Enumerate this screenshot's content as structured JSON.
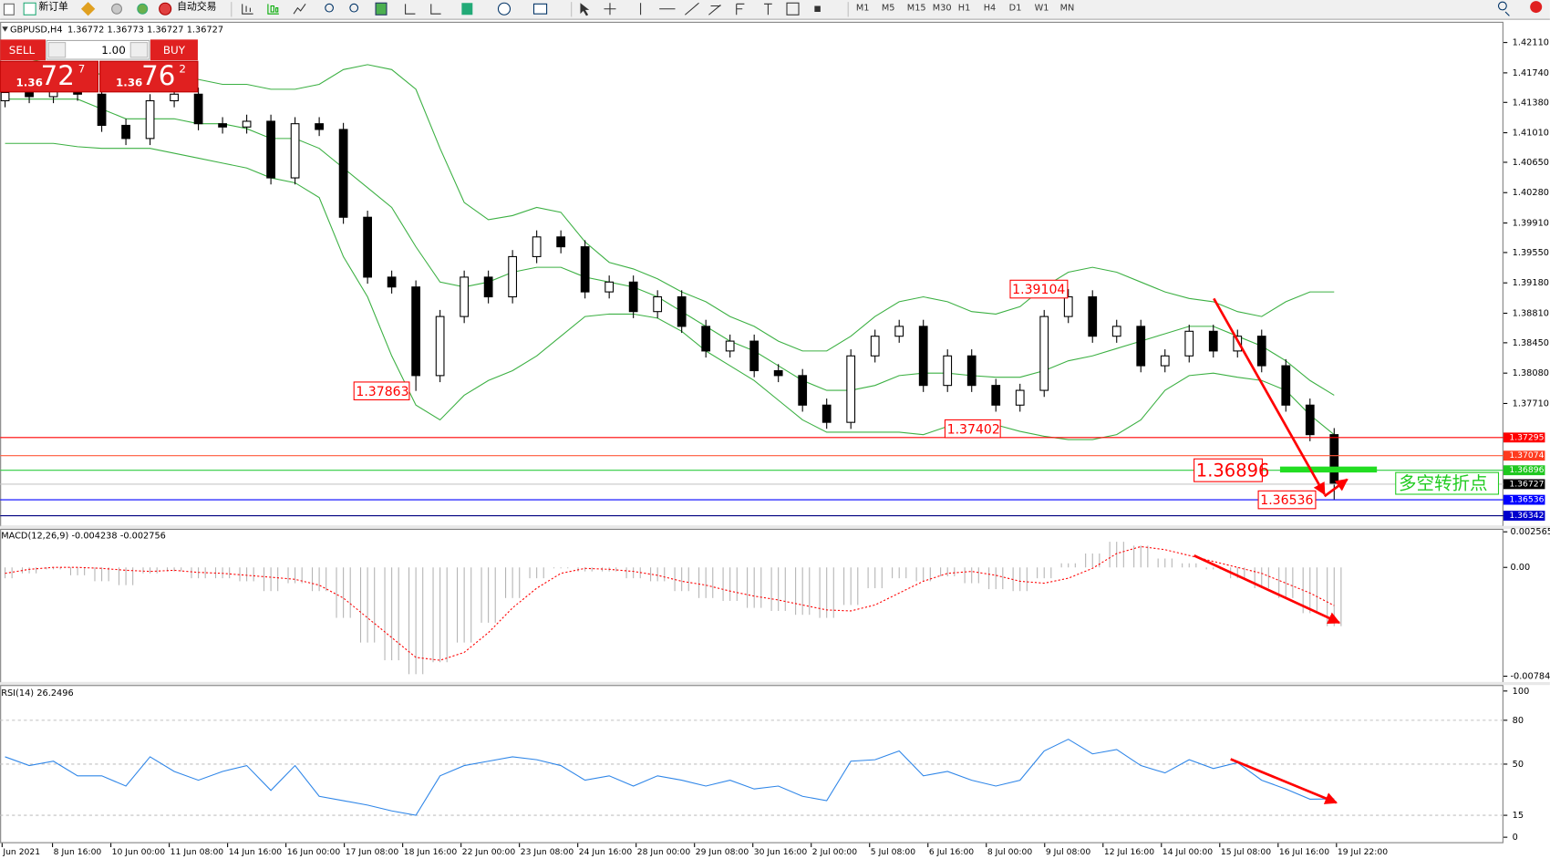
{
  "toolbar": {
    "new_order": "新订单",
    "auto_trading": "自动交易",
    "timeframes": [
      "M1",
      "M5",
      "M15",
      "M30",
      "H1",
      "H4",
      "D1",
      "W1",
      "MN"
    ]
  },
  "trade_panel": {
    "sell": "SELL",
    "buy": "BUY",
    "lot": "1.00",
    "sell_price": {
      "big": "1.36",
      "pips": "72",
      "point": "7"
    },
    "buy_price": {
      "big": "1.36",
      "pips": "76",
      "point": "2"
    }
  },
  "chart": {
    "type": "candlestick",
    "symbol": "GBPUSD,H4",
    "quote": [
      1.36772,
      1.36773,
      1.36727,
      1.36727
    ],
    "ylim": [
      1.36218,
      1.42363
    ],
    "yticks": [
      {
        "value": 1.4211,
        "label": "1.42110"
      },
      {
        "value": 1.4174,
        "label": "1.41740"
      },
      {
        "value": 1.4138,
        "label": "1.41380"
      },
      {
        "value": 1.4101,
        "label": "1.41010"
      },
      {
        "value": 1.4065,
        "label": "1.40650"
      },
      {
        "value": 1.4028,
        "label": "1.40280"
      },
      {
        "value": 1.3991,
        "label": "1.39910"
      },
      {
        "value": 1.3955,
        "label": "1.39550"
      },
      {
        "value": 1.3918,
        "label": "1.39180"
      },
      {
        "value": 1.3881,
        "label": "1.38810"
      },
      {
        "value": 1.3845,
        "label": "1.38450"
      },
      {
        "value": 1.3808,
        "label": "1.38080"
      },
      {
        "value": 1.3771,
        "label": "1.37710"
      }
    ],
    "candles": [
      [
        1.414,
        1.4158,
        1.4132,
        1.415
      ],
      [
        1.415,
        1.4158,
        1.4137,
        1.4145
      ],
      [
        1.4145,
        1.416,
        1.4137,
        1.4152
      ],
      [
        1.4152,
        1.416,
        1.414,
        1.4148
      ],
      [
        1.4148,
        1.4156,
        1.4102,
        1.411
      ],
      [
        1.411,
        1.4118,
        1.4086,
        1.4094
      ],
      [
        1.4094,
        1.4148,
        1.4086,
        1.414
      ],
      [
        1.414,
        1.4156,
        1.4132,
        1.4148
      ],
      [
        1.4148,
        1.4156,
        1.4104,
        1.4112
      ],
      [
        1.4112,
        1.412,
        1.41,
        1.4108
      ],
      [
        1.4108,
        1.4123,
        1.41,
        1.4115
      ],
      [
        1.4115,
        1.4123,
        1.4038,
        1.4046
      ],
      [
        1.4046,
        1.412,
        1.4038,
        1.4112
      ],
      [
        1.4112,
        1.412,
        1.4097,
        1.4105
      ],
      [
        1.4105,
        1.4113,
        1.399,
        1.3998
      ],
      [
        1.3998,
        1.4006,
        1.3917,
        1.3925
      ],
      [
        1.3925,
        1.3933,
        1.3905,
        1.3913
      ],
      [
        1.3913,
        1.3921,
        1.37863,
        1.3805
      ],
      [
        1.3805,
        1.3885,
        1.3797,
        1.3877
      ],
      [
        1.3877,
        1.3933,
        1.3869,
        1.3925
      ],
      [
        1.3925,
        1.3933,
        1.3893,
        1.3901
      ],
      [
        1.3901,
        1.3958,
        1.3893,
        1.395
      ],
      [
        1.395,
        1.3982,
        1.3942,
        1.3974
      ],
      [
        1.3974,
        1.3982,
        1.3954,
        1.3962
      ],
      [
        1.3962,
        1.397,
        1.3899,
        1.3907
      ],
      [
        1.3907,
        1.3927,
        1.3899,
        1.3919
      ],
      [
        1.3919,
        1.3927,
        1.3875,
        1.3883
      ],
      [
        1.3883,
        1.3909,
        1.3875,
        1.3901
      ],
      [
        1.3901,
        1.3909,
        1.3857,
        1.3865
      ],
      [
        1.3865,
        1.3873,
        1.3827,
        1.3835
      ],
      [
        1.3835,
        1.3855,
        1.3827,
        1.3847
      ],
      [
        1.3847,
        1.3855,
        1.3803,
        1.3811
      ],
      [
        1.3811,
        1.3819,
        1.3797,
        1.3805
      ],
      [
        1.3805,
        1.3813,
        1.3761,
        1.3769
      ],
      [
        1.3769,
        1.3777,
        1.37402,
        1.3748
      ],
      [
        1.3748,
        1.3837,
        1.374,
        1.3829
      ],
      [
        1.3829,
        1.3861,
        1.3821,
        1.3853
      ],
      [
        1.3853,
        1.3873,
        1.3845,
        1.3865
      ],
      [
        1.3865,
        1.3873,
        1.3785,
        1.3793
      ],
      [
        1.3793,
        1.3837,
        1.3785,
        1.3829
      ],
      [
        1.3829,
        1.3837,
        1.3785,
        1.3793
      ],
      [
        1.3793,
        1.3801,
        1.3761,
        1.3769
      ],
      [
        1.3769,
        1.3795,
        1.3761,
        1.3787
      ],
      [
        1.3787,
        1.3885,
        1.3779,
        1.3877
      ],
      [
        1.3877,
        1.39104,
        1.3869,
        1.3901
      ],
      [
        1.3901,
        1.3909,
        1.3845,
        1.3853
      ],
      [
        1.3853,
        1.3873,
        1.3845,
        1.3865
      ],
      [
        1.3865,
        1.3873,
        1.3809,
        1.3817
      ],
      [
        1.3817,
        1.3837,
        1.3809,
        1.3829
      ],
      [
        1.3829,
        1.3867,
        1.3821,
        1.3859
      ],
      [
        1.3859,
        1.3867,
        1.3827,
        1.3835
      ],
      [
        1.3835,
        1.3861,
        1.3827,
        1.3853
      ],
      [
        1.3853,
        1.3861,
        1.3809,
        1.3817
      ],
      [
        1.3817,
        1.3825,
        1.3761,
        1.3769
      ],
      [
        1.3769,
        1.3777,
        1.3725,
        1.3733
      ],
      [
        1.3733,
        1.3741,
        1.36536,
        1.36727
      ]
    ],
    "bands_color": "#3cb043",
    "bands": [
      {
        "values": [
          1.4191,
          1.4191,
          1.4184,
          1.4178,
          1.4172,
          1.4154,
          1.416,
          1.4172,
          1.4166,
          1.416,
          1.416,
          1.4154,
          1.4154,
          1.416,
          1.4178,
          1.4184,
          1.4178,
          1.4154,
          1.4082,
          1.4016,
          1.3995,
          1.4,
          1.401,
          1.4004,
          1.3968,
          1.3943,
          1.3935,
          1.3923,
          1.3907,
          1.3895,
          1.3877,
          1.3865,
          1.3847,
          1.3835,
          1.3835,
          1.3853,
          1.3877,
          1.3895,
          1.3901,
          1.3895,
          1.3883,
          1.388,
          1.3889,
          1.3913,
          1.3931,
          1.3937,
          1.3931,
          1.3919,
          1.3907,
          1.3899,
          1.3895,
          1.3883,
          1.3877,
          1.3895,
          1.3907,
          1.3907
        ]
      },
      {
        "values": [
          1.4142,
          1.4142,
          1.4142,
          1.4142,
          1.413,
          1.4118,
          1.4118,
          1.4118,
          1.4112,
          1.4112,
          1.4106,
          1.4094,
          1.4094,
          1.4082,
          1.4058,
          1.4034,
          1.401,
          1.3962,
          1.3919,
          1.3913,
          1.3919,
          1.3931,
          1.3937,
          1.3937,
          1.3925,
          1.3919,
          1.3913,
          1.3901,
          1.3883,
          1.3865,
          1.3847,
          1.3835,
          1.3817,
          1.3799,
          1.3787,
          1.3787,
          1.3793,
          1.3805,
          1.3808,
          1.3808,
          1.3805,
          1.3803,
          1.3803,
          1.3811,
          1.3823,
          1.3829,
          1.3838,
          1.3847,
          1.3856,
          1.3865,
          1.3865,
          1.3853,
          1.3841,
          1.3823,
          1.3799,
          1.3781
        ]
      },
      {
        "values": [
          1.4088,
          1.4088,
          1.4088,
          1.4084,
          1.4082,
          1.4082,
          1.4082,
          1.4076,
          1.407,
          1.4064,
          1.4058,
          1.4046,
          1.404,
          1.4022,
          1.395,
          1.3901,
          1.3829,
          1.3769,
          1.3751,
          1.3781,
          1.3799,
          1.3811,
          1.3829,
          1.3853,
          1.3877,
          1.388,
          1.388,
          1.3875,
          1.3859,
          1.3835,
          1.3817,
          1.3799,
          1.3775,
          1.3751,
          1.3736,
          1.3736,
          1.3736,
          1.3736,
          1.3733,
          1.3743,
          1.3747,
          1.3745,
          1.3737,
          1.3731,
          1.3727,
          1.3727,
          1.3733,
          1.3751,
          1.3787,
          1.3805,
          1.3808,
          1.3803,
          1.3799,
          1.3787,
          1.3757,
          1.3733
        ]
      }
    ],
    "levels": [
      {
        "price": 1.37295,
        "line_color": "#ff0000",
        "color": "#ff0000"
      },
      {
        "price": 1.37074,
        "line_color": "#ff5a3c",
        "color": "#ff3b1f"
      },
      {
        "price": 1.36896,
        "line_color": "#2ecc40",
        "color": "#1fc81f"
      },
      {
        "price": 1.36727,
        "line_color": "#c8c8c8",
        "color": "#000000"
      },
      {
        "price": 1.36536,
        "line_color": "#0000ff",
        "color": "#0000ff"
      },
      {
        "price": 1.36342,
        "line_color": "#000080",
        "color": "#0000cc"
      }
    ],
    "annotations": [
      1.39104,
      1.37863,
      1.37402,
      1.36896,
      1.36536
    ],
    "annotation_text": "多空转折点",
    "dates": [
      "Jun 2021",
      "8 Jun 16:00",
      "10 Jun 00:00",
      "11 Jun 08:00",
      "14 Jun 16:00",
      "16 Jun 00:00",
      "17 Jun 08:00",
      "18 Jun 16:00",
      "22 Jun 00:00",
      "23 Jun 08:00",
      "24 Jun 16:00",
      "28 Jun 00:00",
      "29 Jun 08:00",
      "30 Jun 16:00",
      "2 Jul 00:00",
      "5 Jul 08:00",
      "6 Jul 16:00",
      "8 Jul 00:00",
      "9 Jul 08:00",
      "12 Jul 16:00",
      "14 Jul 00:00",
      "15 Jul 08:00",
      "16 Jul 16:00",
      "19 Jul 22:00"
    ]
  },
  "macd": {
    "type": "histogram",
    "title": "MACD(12,26,9)",
    "main_value": -0.004238,
    "signal_value": -0.002756,
    "ylim": [
      -0.00827,
      0.00278
    ],
    "yticks": [
      0.002565,
      {
        "value": 0,
        "label": "0.00"
      },
      -0.007847
    ],
    "hist_color": "#b4b4b4",
    "signal_color": "#ff0000",
    "histogram": [
      -0.00078,
      -0.00043,
      -0.00014,
      -0.00057,
      -0.001,
      -0.00128,
      -0.00043,
      -0.00029,
      -0.00078,
      -0.00078,
      -0.001,
      -0.00171,
      -0.00114,
      -0.00171,
      -0.00364,
      -0.00542,
      -0.0067,
      -0.0077,
      -0.00684,
      -0.00542,
      -0.00399,
      -0.00221,
      -0.00078,
      -7e-05,
      -0.00029,
      -0.00029,
      -0.00078,
      -0.001,
      -0.00171,
      -0.00221,
      -0.00242,
      -0.00292,
      -0.00314,
      -0.00342,
      -0.00364,
      -0.00271,
      -0.0015,
      -0.00078,
      -0.001,
      -0.00064,
      -0.00114,
      -0.00157,
      -0.00171,
      -0.00078,
      0.00029,
      0.001,
      0.00185,
      0.00157,
      0.00064,
      0.00029,
      -0.00014,
      -0.00078,
      -0.0015,
      -0.00221,
      -0.0033,
      -0.004238
    ],
    "signal": [
      -0.00043,
      -0.00014,
      0,
      0,
      -7e-05,
      -0.00021,
      -0.00029,
      -0.00021,
      -0.00036,
      -0.00043,
      -0.00057,
      -0.00071,
      -0.00086,
      -0.00128,
      -0.00221,
      -0.00364,
      -0.00506,
      -0.00649,
      -0.0067,
      -0.00613,
      -0.00471,
      -0.00292,
      -0.0015,
      -0.00043,
      -7e-05,
      -0.00014,
      -0.00029,
      -0.00057,
      -0.001,
      -0.00128,
      -0.00171,
      -0.00207,
      -0.00235,
      -0.00271,
      -0.00307,
      -0.00314,
      -0.00271,
      -0.00185,
      -0.001,
      -0.00043,
      -0.00029,
      -0.00057,
      -0.001,
      -0.00114,
      -0.00078,
      -7e-05,
      0.001,
      0.0015,
      0.00128,
      0.00086,
      0.00043,
      0,
      -0.00043,
      -0.00114,
      -0.00185,
      -0.002756
    ]
  },
  "rsi": {
    "type": "line",
    "title": "RSI(14)",
    "value": 26.2496,
    "ylim": [
      -3.4,
      104.1
    ],
    "yticks": [
      100,
      80,
      50,
      15,
      0
    ],
    "dashed_levels": [
      80,
      50,
      15
    ],
    "color": "#2f86e8",
    "values": [
      55,
      49,
      52,
      42,
      42,
      35,
      55,
      45,
      39,
      45,
      49,
      32,
      49,
      28,
      25,
      22,
      18,
      15,
      42,
      49,
      52,
      55,
      53,
      49,
      39,
      42,
      35,
      42,
      39,
      35,
      39,
      33,
      35,
      28,
      25,
      52,
      53,
      59,
      42,
      45,
      39,
      35,
      39,
      59,
      67,
      57,
      60,
      49,
      44,
      53,
      47,
      51,
      39,
      33,
      26,
      26.2496
    ]
  }
}
